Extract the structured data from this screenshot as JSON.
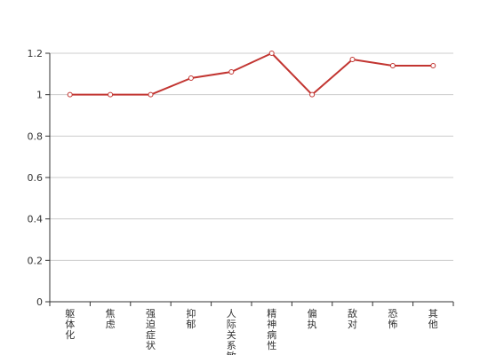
{
  "chart_data": {
    "type": "line",
    "categories": [
      "躯体化",
      "焦虑",
      "强迫症状",
      "抑郁",
      "人际关系敏感",
      "精神病性",
      "偏执",
      "敌对",
      "恐怖",
      "其他"
    ],
    "series": [
      {
        "values": [
          1.0,
          1.0,
          1.0,
          1.08,
          1.11,
          1.2,
          1.0,
          1.17,
          1.14,
          1.14
        ]
      }
    ],
    "y_ticks": [
      "0",
      "0.2",
      "0.4",
      "0.6",
      "0.8",
      "1",
      "1.2"
    ],
    "ylim": [
      0,
      1.2
    ],
    "grid": true,
    "colors": {
      "line": "#c23531",
      "grid": "#cccccc",
      "axis": "#333333"
    }
  }
}
